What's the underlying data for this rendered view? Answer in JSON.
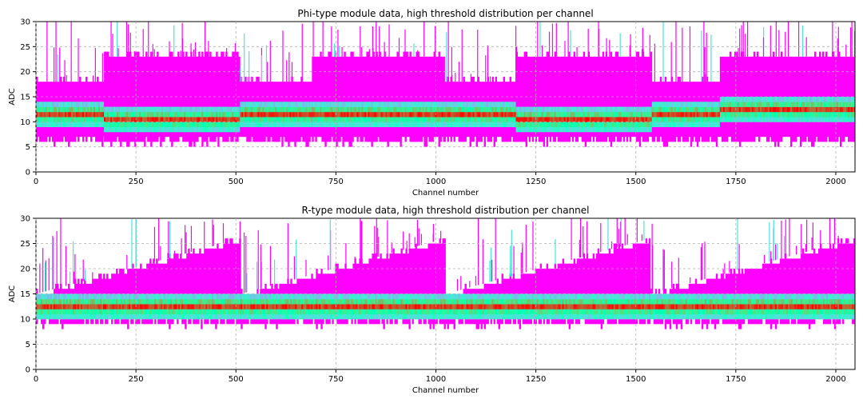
{
  "chart_data": [
    {
      "type": "heatmap",
      "title": "Phi-type module data, high threshold distribution per channel",
      "xlabel": "Channel number",
      "ylabel": "ADC",
      "xlim": [
        0,
        2048
      ],
      "ylim": [
        0,
        30
      ],
      "xticks": [
        0,
        250,
        500,
        750,
        1000,
        1250,
        1500,
        1750,
        2000
      ],
      "yticks": [
        0,
        5,
        10,
        15,
        20,
        25,
        30
      ],
      "grid": true,
      "colormap": "rainbow",
      "segments": [
        {
          "x_start": 0,
          "x_end": 170,
          "lower_edge": 6,
          "upper_edge": 18,
          "peak_adc": 11
        },
        {
          "x_start": 170,
          "x_end": 510,
          "lower_edge": 6,
          "upper_edge": 23,
          "peak_adc": 10
        },
        {
          "x_start": 510,
          "x_end": 690,
          "lower_edge": 6,
          "upper_edge": 18,
          "peak_adc": 11
        },
        {
          "x_start": 690,
          "x_end": 1020,
          "lower_edge": 6,
          "upper_edge": 23,
          "peak_adc": 11
        },
        {
          "x_start": 1020,
          "x_end": 1200,
          "lower_edge": 6,
          "upper_edge": 18,
          "peak_adc": 11
        },
        {
          "x_start": 1200,
          "x_end": 1540,
          "lower_edge": 6,
          "upper_edge": 23,
          "peak_adc": 10
        },
        {
          "x_start": 1540,
          "x_end": 1710,
          "lower_edge": 6,
          "upper_edge": 18,
          "peak_adc": 11
        },
        {
          "x_start": 1710,
          "x_end": 2048,
          "lower_edge": 6,
          "upper_edge": 23,
          "peak_adc": 12
        }
      ]
    },
    {
      "type": "heatmap",
      "title": "R-type module data, high threshold distribution per channel",
      "xlabel": "Channel number",
      "ylabel": "ADC",
      "xlim": [
        0,
        2048
      ],
      "ylim": [
        0,
        30
      ],
      "xticks": [
        0,
        250,
        500,
        750,
        1000,
        1250,
        1500,
        1750,
        2000
      ],
      "yticks": [
        0,
        5,
        10,
        15,
        20,
        25,
        30
      ],
      "grid": true,
      "colormap": "rainbow",
      "segments": [
        {
          "x_start": 0,
          "x_end": 512,
          "lower_edge": 9,
          "upper_start": 15,
          "upper_end": 26,
          "peak_adc": 12
        },
        {
          "x_start": 512,
          "x_end": 1024,
          "lower_edge": 9,
          "upper_start": 15,
          "upper_end": 26,
          "peak_adc": 12
        },
        {
          "x_start": 1024,
          "x_end": 1536,
          "lower_edge": 9,
          "upper_start": 15,
          "upper_end": 26,
          "peak_adc": 12
        },
        {
          "x_start": 1536,
          "x_end": 2048,
          "lower_edge": 9,
          "upper_start": 15,
          "upper_end": 26,
          "peak_adc": 12
        }
      ]
    }
  ]
}
